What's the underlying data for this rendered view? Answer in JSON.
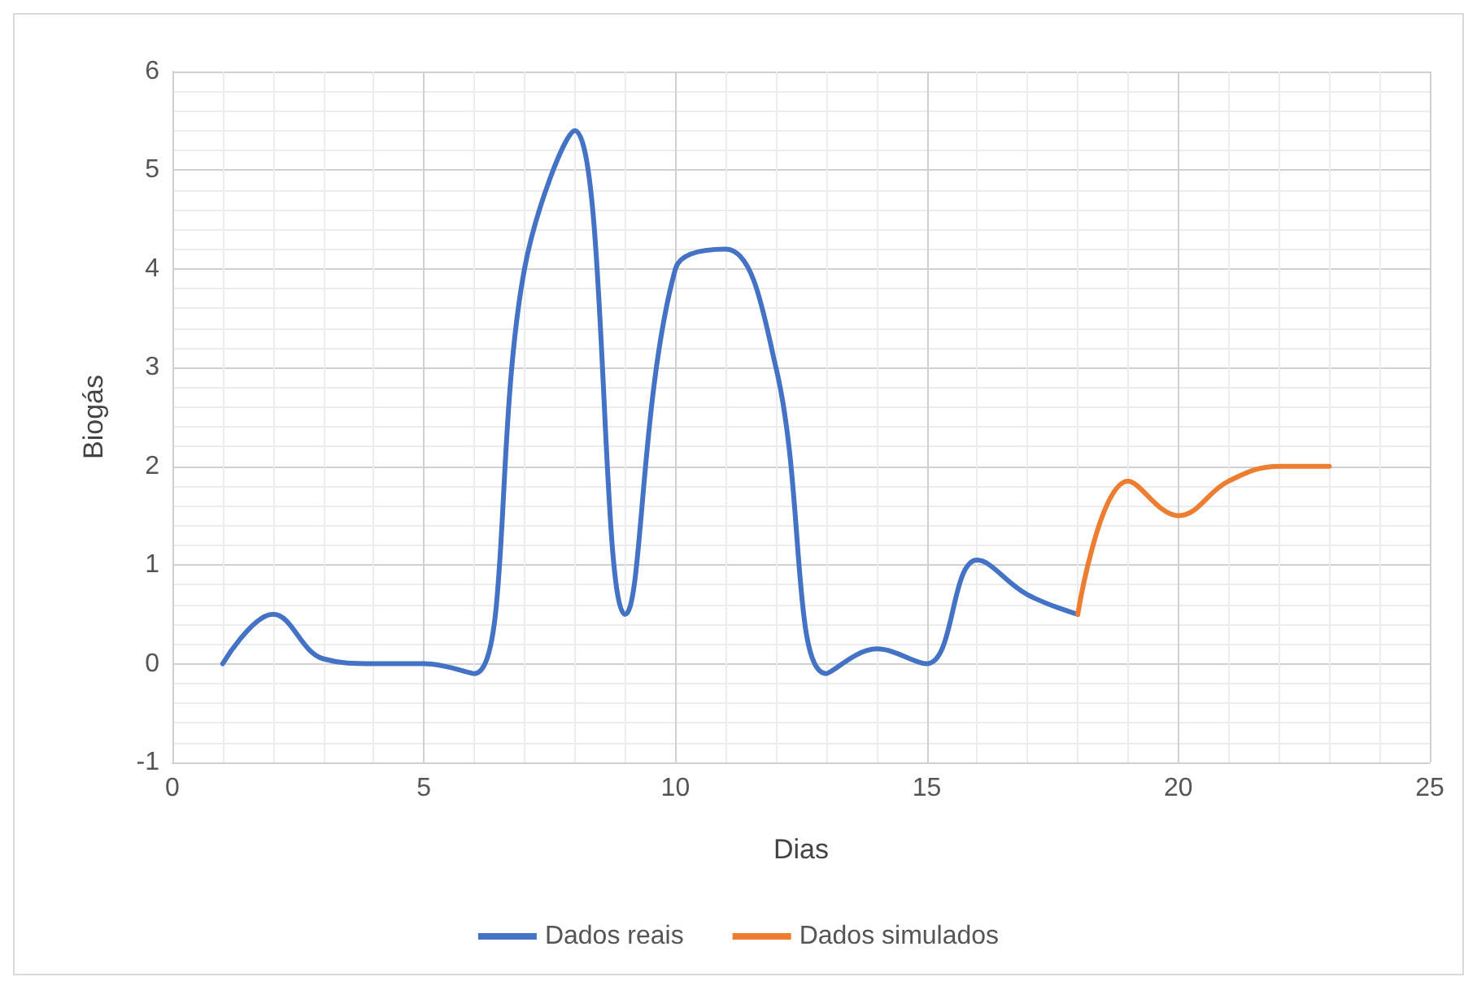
{
  "chart_data": {
    "type": "line",
    "xlabel": "Dias",
    "ylabel": "Biogás",
    "xlim": [
      0,
      25
    ],
    "xticks": [
      0,
      5,
      10,
      15,
      20,
      25
    ],
    "ylim": [
      -1,
      6
    ],
    "yticks": [
      -1,
      0,
      1,
      2,
      3,
      4,
      5,
      6
    ],
    "grid": true,
    "legend": "bottom",
    "marker": "none",
    "line_style": "solid",
    "series": [
      {
        "name": "Dados reais",
        "color": "#4472c4",
        "x": [
          1,
          2,
          3,
          4,
          5,
          6,
          7,
          8,
          9,
          10,
          11,
          12,
          13,
          14,
          15,
          16,
          17,
          18
        ],
        "values": [
          0,
          0.5,
          0.05,
          0,
          0,
          -0.1,
          4,
          5.4,
          0.5,
          4,
          4.2,
          3,
          -0.1,
          0.15,
          0,
          1.05,
          0.7,
          0.5
        ]
      },
      {
        "name": "Dados simulados",
        "color": "#ed7d31",
        "x": [
          18,
          19,
          20,
          21,
          22,
          23
        ],
        "values": [
          0.5,
          1.85,
          1.5,
          1.85,
          2,
          2
        ]
      }
    ]
  }
}
